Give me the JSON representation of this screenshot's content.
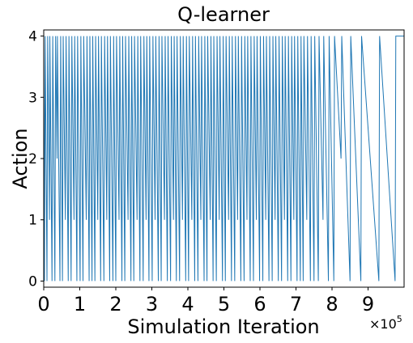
{
  "chart_data": {
    "type": "line",
    "title": "Q-learner",
    "xlabel": "Simulation Iteration",
    "ylabel": "Action",
    "x_multiplier_label": "×10",
    "x_multiplier_exponent": "5",
    "xlim": [
      0,
      1000000
    ],
    "ylim": [
      -0.1,
      4.1
    ],
    "x_tick_values": [
      0,
      100000,
      200000,
      300000,
      400000,
      500000,
      600000,
      700000,
      800000,
      900000
    ],
    "x_tick_labels": [
      "0",
      "1",
      "2",
      "3",
      "4",
      "5",
      "6",
      "7",
      "8",
      "9"
    ],
    "y_tick_values": [
      0,
      1,
      2,
      3,
      4
    ],
    "y_tick_labels": [
      "0",
      "1",
      "2",
      "3",
      "4"
    ],
    "grid": false,
    "series": [
      {
        "color": "#1f77b4",
        "description_values": "action switches between 0,1,2,3,4; dense switching early, mostly 4 after ~750000",
        "points": [
          [
            0,
            4
          ],
          [
            2000,
            0
          ],
          [
            4000,
            4
          ],
          [
            9000,
            0
          ],
          [
            11000,
            4
          ],
          [
            16000,
            1
          ],
          [
            17000,
            4
          ],
          [
            23000,
            0
          ],
          [
            25000,
            4
          ],
          [
            31000,
            0
          ],
          [
            33000,
            4
          ],
          [
            37000,
            2
          ],
          [
            38000,
            4
          ],
          [
            45000,
            0
          ],
          [
            47000,
            4
          ],
          [
            52000,
            0
          ],
          [
            54000,
            4
          ],
          [
            60000,
            1
          ],
          [
            62000,
            4
          ],
          [
            68000,
            0
          ],
          [
            70000,
            4
          ],
          [
            76000,
            0
          ],
          [
            78000,
            4
          ],
          [
            84000,
            1
          ],
          [
            86000,
            4
          ],
          [
            92000,
            0
          ],
          [
            94000,
            4
          ],
          [
            101000,
            0
          ],
          [
            103000,
            4
          ],
          [
            109000,
            0
          ],
          [
            111000,
            4
          ],
          [
            118000,
            1
          ],
          [
            120000,
            4
          ],
          [
            126000,
            0
          ],
          [
            128000,
            4
          ],
          [
            134000,
            0
          ],
          [
            136000,
            4
          ],
          [
            142000,
            0
          ],
          [
            144000,
            4
          ],
          [
            150000,
            1
          ],
          [
            152000,
            4
          ],
          [
            158000,
            0
          ],
          [
            160000,
            4
          ],
          [
            167000,
            0
          ],
          [
            169000,
            4
          ],
          [
            175000,
            1
          ],
          [
            177000,
            4
          ],
          [
            183000,
            0
          ],
          [
            185000,
            4
          ],
          [
            192000,
            0
          ],
          [
            194000,
            4
          ],
          [
            200000,
            0
          ],
          [
            202000,
            4
          ],
          [
            209000,
            1
          ],
          [
            211000,
            4
          ],
          [
            217000,
            0
          ],
          [
            219000,
            4
          ],
          [
            225000,
            0
          ],
          [
            227000,
            4
          ],
          [
            234000,
            1
          ],
          [
            236000,
            4
          ],
          [
            242000,
            0
          ],
          [
            244000,
            4
          ],
          [
            250000,
            0
          ],
          [
            252000,
            4
          ],
          [
            259000,
            1
          ],
          [
            261000,
            4
          ],
          [
            267000,
            0
          ],
          [
            269000,
            4
          ],
          [
            276000,
            0
          ],
          [
            278000,
            4
          ],
          [
            284000,
            1
          ],
          [
            286000,
            4
          ],
          [
            292000,
            0
          ],
          [
            294000,
            4
          ],
          [
            301000,
            0
          ],
          [
            303000,
            4
          ],
          [
            309000,
            1
          ],
          [
            311000,
            4
          ],
          [
            318000,
            0
          ],
          [
            320000,
            4
          ],
          [
            326000,
            0
          ],
          [
            328000,
            4
          ],
          [
            335000,
            1
          ],
          [
            337000,
            4
          ],
          [
            343000,
            0
          ],
          [
            345000,
            4
          ],
          [
            352000,
            0
          ],
          [
            354000,
            4
          ],
          [
            360000,
            1
          ],
          [
            362000,
            4
          ],
          [
            368000,
            0
          ],
          [
            370000,
            4
          ],
          [
            377000,
            0
          ],
          [
            379000,
            4
          ],
          [
            385000,
            1
          ],
          [
            387000,
            4
          ],
          [
            394000,
            0
          ],
          [
            396000,
            4
          ],
          [
            402000,
            0
          ],
          [
            404000,
            4
          ],
          [
            411000,
            1
          ],
          [
            413000,
            4
          ],
          [
            419000,
            0
          ],
          [
            421000,
            4
          ],
          [
            428000,
            0
          ],
          [
            430000,
            4
          ],
          [
            436000,
            1
          ],
          [
            438000,
            4
          ],
          [
            445000,
            0
          ],
          [
            447000,
            4
          ],
          [
            453000,
            0
          ],
          [
            455000,
            4
          ],
          [
            462000,
            1
          ],
          [
            464000,
            4
          ],
          [
            470000,
            0
          ],
          [
            472000,
            4
          ],
          [
            479000,
            0
          ],
          [
            481000,
            4
          ],
          [
            487000,
            1
          ],
          [
            489000,
            4
          ],
          [
            496000,
            0
          ],
          [
            498000,
            4
          ],
          [
            504000,
            0
          ],
          [
            506000,
            4
          ],
          [
            513000,
            1
          ],
          [
            515000,
            4
          ],
          [
            521000,
            0
          ],
          [
            523000,
            4
          ],
          [
            530000,
            0
          ],
          [
            532000,
            4
          ],
          [
            538000,
            1
          ],
          [
            540000,
            4
          ],
          [
            547000,
            0
          ],
          [
            549000,
            4
          ],
          [
            556000,
            0
          ],
          [
            558000,
            4
          ],
          [
            564000,
            1
          ],
          [
            566000,
            4
          ],
          [
            573000,
            0
          ],
          [
            575000,
            4
          ],
          [
            582000,
            0
          ],
          [
            584000,
            4
          ],
          [
            590000,
            1
          ],
          [
            592000,
            4
          ],
          [
            599000,
            0
          ],
          [
            601000,
            4
          ],
          [
            608000,
            0
          ],
          [
            610000,
            4
          ],
          [
            616000,
            1
          ],
          [
            618000,
            4
          ],
          [
            625000,
            0
          ],
          [
            627000,
            4
          ],
          [
            634000,
            0
          ],
          [
            636000,
            4
          ],
          [
            642000,
            1
          ],
          [
            644000,
            4
          ],
          [
            651000,
            0
          ],
          [
            653000,
            4
          ],
          [
            660000,
            0
          ],
          [
            662000,
            4
          ],
          [
            668000,
            1
          ],
          [
            670000,
            4
          ],
          [
            677000,
            0
          ],
          [
            679000,
            4
          ],
          [
            686000,
            0
          ],
          [
            688000,
            4
          ],
          [
            694000,
            1
          ],
          [
            696000,
            4
          ],
          [
            703000,
            0
          ],
          [
            705000,
            4
          ],
          [
            712000,
            0
          ],
          [
            714000,
            4
          ],
          [
            720000,
            0
          ],
          [
            722000,
            4
          ],
          [
            730000,
            1
          ],
          [
            732000,
            4
          ],
          [
            740000,
            0
          ],
          [
            742000,
            4
          ],
          [
            750000,
            0
          ],
          [
            752000,
            4
          ],
          [
            762000,
            0
          ],
          [
            764000,
            4
          ],
          [
            775000,
            1
          ],
          [
            777000,
            4
          ],
          [
            790000,
            0
          ],
          [
            792000,
            4
          ],
          [
            805000,
            0
          ],
          [
            807000,
            4
          ],
          [
            825000,
            2
          ],
          [
            827000,
            4
          ],
          [
            850000,
            0
          ],
          [
            852000,
            4
          ],
          [
            880000,
            0
          ],
          [
            882000,
            4
          ],
          [
            930000,
            0
          ],
          [
            932000,
            4
          ],
          [
            975000,
            0
          ],
          [
            977000,
            4
          ],
          [
            1000000,
            4
          ]
        ]
      }
    ]
  }
}
